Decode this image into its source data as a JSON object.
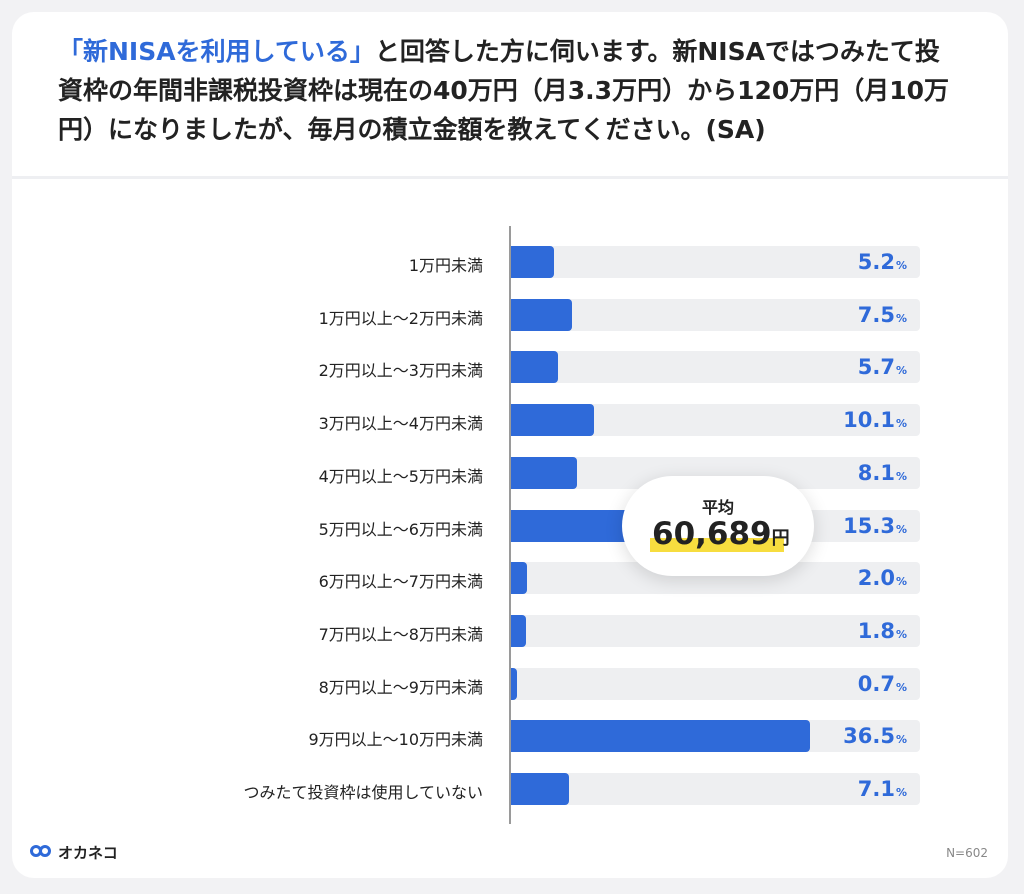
{
  "question": {
    "highlight": "「新NISAを利用している」",
    "rest": "と回答した方に伺います。新NISAではつみたて投資枠の年間非課税投資枠は現在の40万円（月3.3万円）から120万円（月10万円）になりましたが、毎月の積立金額を教えてください。(SA)"
  },
  "chart_data": {
    "type": "bar",
    "orientation": "horizontal",
    "categories": [
      "1万円未満",
      "1万円以上〜2万円未満",
      "2万円以上〜3万円未満",
      "3万円以上〜4万円未満",
      "4万円以上〜5万円未満",
      "5万円以上〜6万円未満",
      "6万円以上〜7万円未満",
      "7万円以上〜8万円未満",
      "8万円以上〜9万円未満",
      "9万円以上〜10万円未満",
      "つみたて投資枠は使用していない"
    ],
    "values": [
      5.2,
      7.5,
      5.7,
      10.1,
      8.1,
      15.3,
      2.0,
      1.8,
      0.7,
      36.5,
      7.1
    ],
    "value_labels": [
      "5.2",
      "7.5",
      "5.7",
      "10.1",
      "8.1",
      "15.3",
      "2.0",
      "1.8",
      "0.7",
      "36.5",
      "7.1"
    ],
    "unit": "%",
    "xlim": [
      0,
      50
    ],
    "bar_color": "#2f6ad9",
    "track_color": "#eeeff1",
    "average": {
      "title": "平均",
      "value": "60,689",
      "unit": "円"
    }
  },
  "footer": {
    "logo_text": "オカネコ",
    "n_label": "N=602"
  }
}
